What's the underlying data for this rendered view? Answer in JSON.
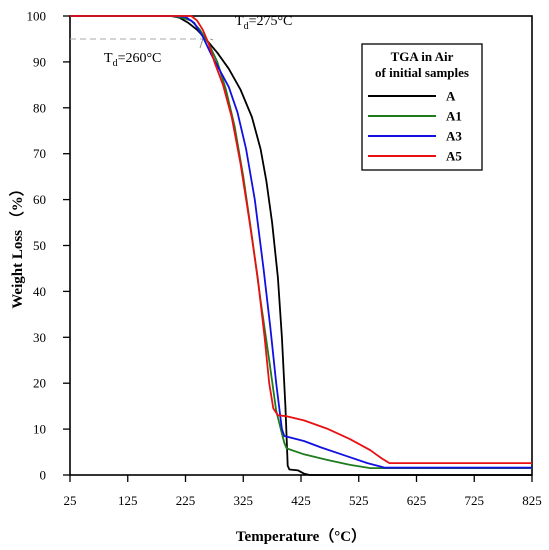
{
  "chart_data": {
    "type": "line",
    "xlabel": "Temperature（°C）",
    "ylabel": "Weight Loss （%）",
    "xlim": [
      25,
      825
    ],
    "ylim": [
      0,
      100
    ],
    "x_ticks": [
      25,
      125,
      225,
      325,
      425,
      525,
      625,
      725,
      825
    ],
    "y_ticks": [
      0,
      10,
      20,
      30,
      40,
      50,
      60,
      70,
      80,
      90,
      100
    ],
    "grid": false,
    "legend": {
      "placement": "top-right",
      "title_line1": "TGA in Air",
      "title_line2": "of initial samples"
    },
    "reference_line": {
      "y": 95,
      "style": "dashed",
      "color": "#aaaaaa"
    },
    "annotations": [
      {
        "prefix": "T",
        "sub": "d",
        "suffix": "=275°C",
        "at": [
          268,
          95
        ]
      },
      {
        "prefix": "T",
        "sub": "d",
        "suffix": "=260°C",
        "at": [
          255,
          95
        ]
      }
    ],
    "series": [
      {
        "name": "A",
        "color": "#000000",
        "points": [
          [
            25,
            100
          ],
          [
            200,
            100
          ],
          [
            215,
            99.6
          ],
          [
            230,
            98.5
          ],
          [
            245,
            97
          ],
          [
            260,
            95
          ],
          [
            280,
            92
          ],
          [
            300,
            88.5
          ],
          [
            320,
            84
          ],
          [
            340,
            78
          ],
          [
            355,
            71
          ],
          [
            365,
            64
          ],
          [
            375,
            55
          ],
          [
            385,
            43
          ],
          [
            392,
            30
          ],
          [
            398,
            15
          ],
          [
            402,
            2
          ],
          [
            405,
            1.2
          ],
          [
            420,
            1
          ],
          [
            430,
            0.3
          ],
          [
            440,
            0
          ],
          [
            825,
            0
          ]
        ]
      },
      {
        "name": "A1",
        "color": "#1e7b1e",
        "points": [
          [
            25,
            100
          ],
          [
            200,
            100
          ],
          [
            220,
            99.6
          ],
          [
            235,
            99
          ],
          [
            250,
            97
          ],
          [
            265,
            94
          ],
          [
            280,
            90
          ],
          [
            295,
            84
          ],
          [
            310,
            76
          ],
          [
            325,
            65
          ],
          [
            340,
            52
          ],
          [
            355,
            38
          ],
          [
            370,
            25
          ],
          [
            382,
            14
          ],
          [
            390,
            10
          ],
          [
            396,
            7
          ],
          [
            400,
            5.8
          ],
          [
            430,
            4.5
          ],
          [
            470,
            3.3
          ],
          [
            510,
            2.2
          ],
          [
            545,
            1.5
          ],
          [
            560,
            1.5
          ],
          [
            825,
            1.5
          ]
        ]
      },
      {
        "name": "A3",
        "color": "#1010e0",
        "points": [
          [
            25,
            100
          ],
          [
            200,
            100
          ],
          [
            225,
            99.8
          ],
          [
            240,
            98.5
          ],
          [
            255,
            95.5
          ],
          [
            270,
            91.5
          ],
          [
            285,
            88
          ],
          [
            300,
            84.5
          ],
          [
            315,
            79
          ],
          [
            330,
            71
          ],
          [
            345,
            60
          ],
          [
            360,
            45
          ],
          [
            372,
            32
          ],
          [
            382,
            20
          ],
          [
            388,
            14
          ],
          [
            392,
            10
          ],
          [
            396,
            8.5
          ],
          [
            430,
            7.4
          ],
          [
            460,
            6
          ],
          [
            500,
            4.3
          ],
          [
            540,
            2.6
          ],
          [
            570,
            1.6
          ],
          [
            600,
            1.6
          ],
          [
            825,
            1.6
          ]
        ]
      },
      {
        "name": "A5",
        "color": "#e81010",
        "points": [
          [
            25,
            100
          ],
          [
            235,
            100
          ],
          [
            245,
            99
          ],
          [
            255,
            97
          ],
          [
            265,
            94
          ],
          [
            275,
            90
          ],
          [
            290,
            85
          ],
          [
            305,
            78
          ],
          [
            320,
            68
          ],
          [
            335,
            56
          ],
          [
            350,
            43
          ],
          [
            362,
            30
          ],
          [
            370,
            20
          ],
          [
            377,
            14.5
          ],
          [
            385,
            13
          ],
          [
            400,
            12.8
          ],
          [
            430,
            11.9
          ],
          [
            470,
            10.1
          ],
          [
            510,
            7.8
          ],
          [
            545,
            5.4
          ],
          [
            565,
            3.6
          ],
          [
            578,
            2.6
          ],
          [
            600,
            2.6
          ],
          [
            825,
            2.6
          ]
        ]
      }
    ]
  }
}
